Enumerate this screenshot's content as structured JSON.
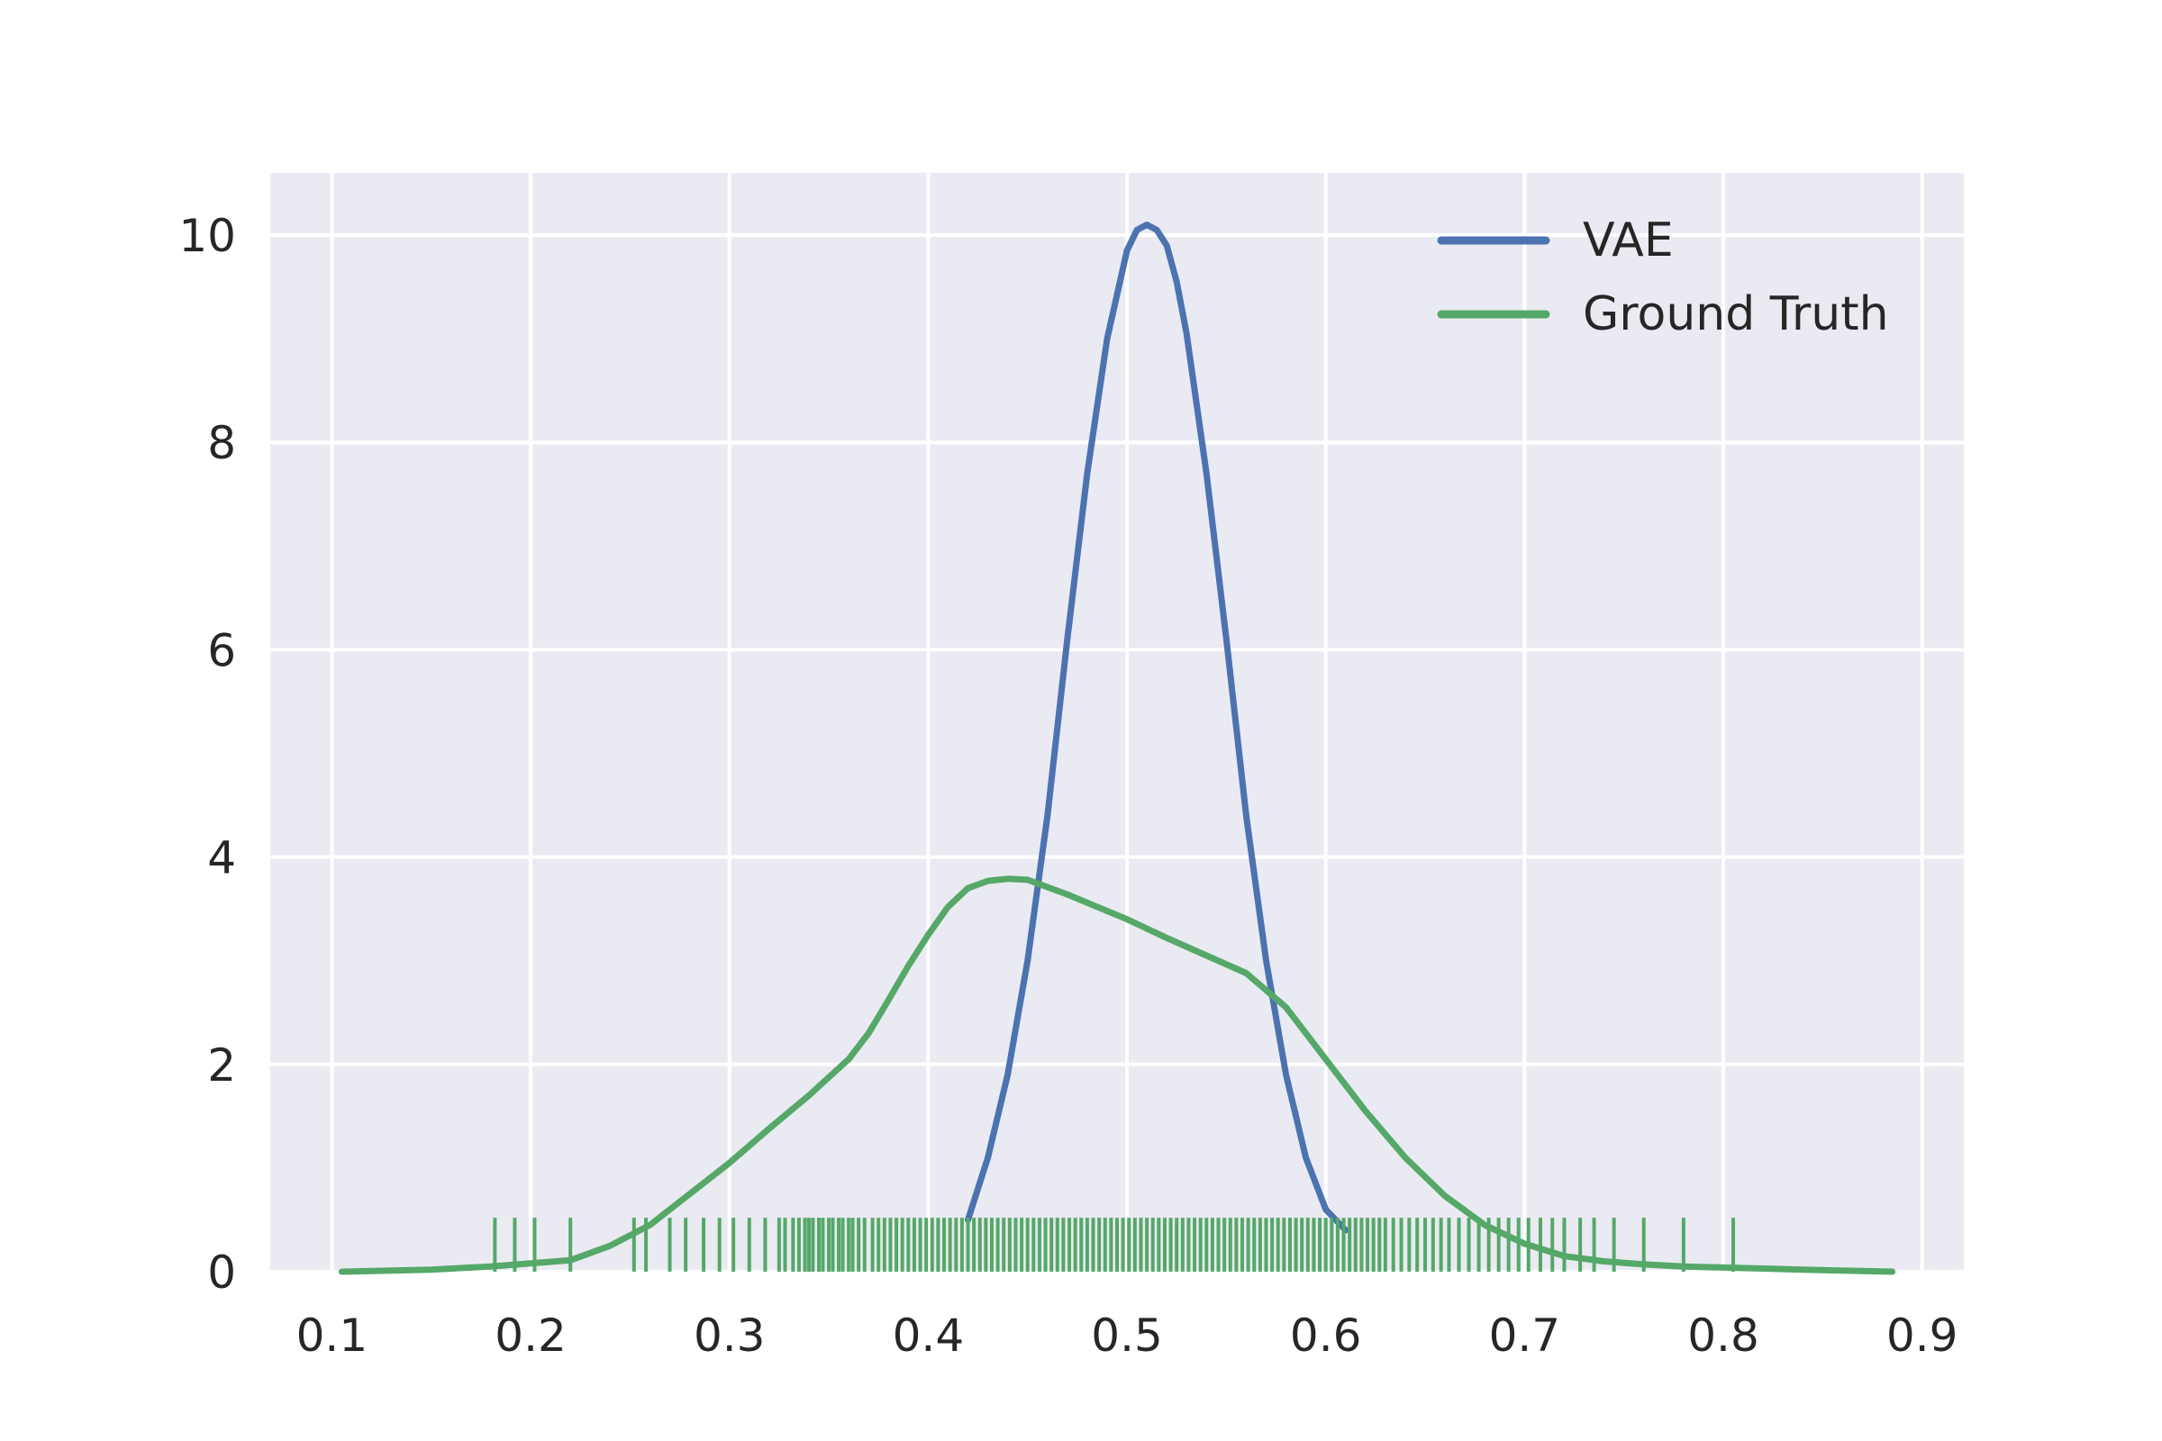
{
  "chart_data": {
    "type": "line",
    "title": "",
    "xlabel": "",
    "ylabel": "",
    "xlim": [
      0.069,
      0.921
    ],
    "ylim": [
      0,
      10.6
    ],
    "xticks": [
      0.1,
      0.2,
      0.3,
      0.4,
      0.5,
      0.6,
      0.7,
      0.8,
      0.9
    ],
    "yticks": [
      0,
      2,
      4,
      6,
      8,
      10
    ],
    "xtick_labels": [
      "0.1",
      "0.2",
      "0.3",
      "0.4",
      "0.5",
      "0.6",
      "0.7",
      "0.8",
      "0.9"
    ],
    "ytick_labels": [
      "0",
      "2",
      "4",
      "6",
      "8",
      "10"
    ],
    "grid": true,
    "background": "#eaeaf2",
    "legend": {
      "position": "top-right"
    },
    "series": [
      {
        "name": "VAE",
        "color": "#4c72b0",
        "x": [
          0.42,
          0.43,
          0.44,
          0.45,
          0.46,
          0.47,
          0.48,
          0.49,
          0.5,
          0.505,
          0.51,
          0.515,
          0.52,
          0.525,
          0.53,
          0.54,
          0.55,
          0.56,
          0.57,
          0.58,
          0.59,
          0.6,
          0.61
        ],
        "y": [
          0.5,
          1.1,
          1.9,
          3.0,
          4.4,
          6.1,
          7.7,
          9.0,
          9.85,
          10.05,
          10.1,
          10.05,
          9.9,
          9.55,
          9.05,
          7.7,
          6.1,
          4.4,
          3.0,
          1.9,
          1.1,
          0.6,
          0.4
        ]
      },
      {
        "name": "Ground Truth",
        "color": "#55a868",
        "x": [
          0.105,
          0.15,
          0.18,
          0.2,
          0.22,
          0.24,
          0.26,
          0.28,
          0.3,
          0.32,
          0.34,
          0.36,
          0.37,
          0.38,
          0.39,
          0.4,
          0.41,
          0.42,
          0.43,
          0.44,
          0.45,
          0.46,
          0.47,
          0.48,
          0.49,
          0.5,
          0.52,
          0.54,
          0.56,
          0.58,
          0.6,
          0.62,
          0.64,
          0.66,
          0.68,
          0.7,
          0.72,
          0.74,
          0.76,
          0.78,
          0.8,
          0.82,
          0.84,
          0.86,
          0.885
        ],
        "y": [
          0.0,
          0.02,
          0.05,
          0.08,
          0.11,
          0.25,
          0.45,
          0.75,
          1.05,
          1.38,
          1.7,
          2.05,
          2.3,
          2.62,
          2.95,
          3.25,
          3.52,
          3.7,
          3.77,
          3.79,
          3.78,
          3.71,
          3.64,
          3.56,
          3.48,
          3.4,
          3.22,
          3.05,
          2.88,
          2.55,
          2.05,
          1.55,
          1.1,
          0.73,
          0.45,
          0.27,
          0.15,
          0.1,
          0.07,
          0.05,
          0.04,
          0.03,
          0.02,
          0.01,
          0.0
        ]
      }
    ],
    "rug": {
      "series": "Ground Truth",
      "color": "#55a868",
      "height": 0.52,
      "values": [
        0.182,
        0.192,
        0.202,
        0.22,
        0.252,
        0.258,
        0.27,
        0.278,
        0.287,
        0.295,
        0.302,
        0.31,
        0.318,
        0.325,
        0.328,
        0.332,
        0.335,
        0.338,
        0.34,
        0.342,
        0.345,
        0.347,
        0.35,
        0.352,
        0.355,
        0.357,
        0.36,
        0.362,
        0.365,
        0.368,
        0.372,
        0.375,
        0.378,
        0.381,
        0.384,
        0.387,
        0.39,
        0.393,
        0.396,
        0.399,
        0.402,
        0.405,
        0.408,
        0.411,
        0.414,
        0.417,
        0.42,
        0.423,
        0.426,
        0.429,
        0.432,
        0.435,
        0.438,
        0.441,
        0.444,
        0.447,
        0.45,
        0.453,
        0.456,
        0.459,
        0.462,
        0.465,
        0.468,
        0.471,
        0.474,
        0.477,
        0.48,
        0.483,
        0.486,
        0.489,
        0.492,
        0.495,
        0.498,
        0.501,
        0.504,
        0.507,
        0.51,
        0.513,
        0.516,
        0.519,
        0.522,
        0.525,
        0.528,
        0.531,
        0.534,
        0.537,
        0.54,
        0.543,
        0.546,
        0.549,
        0.552,
        0.555,
        0.558,
        0.561,
        0.564,
        0.567,
        0.57,
        0.573,
        0.576,
        0.579,
        0.582,
        0.585,
        0.588,
        0.591,
        0.594,
        0.597,
        0.6,
        0.603,
        0.606,
        0.609,
        0.612,
        0.615,
        0.618,
        0.621,
        0.624,
        0.627,
        0.63,
        0.634,
        0.638,
        0.642,
        0.646,
        0.65,
        0.654,
        0.658,
        0.662,
        0.667,
        0.672,
        0.677,
        0.682,
        0.687,
        0.692,
        0.697,
        0.702,
        0.708,
        0.714,
        0.72,
        0.728,
        0.735,
        0.745,
        0.76,
        0.78,
        0.805
      ]
    }
  }
}
